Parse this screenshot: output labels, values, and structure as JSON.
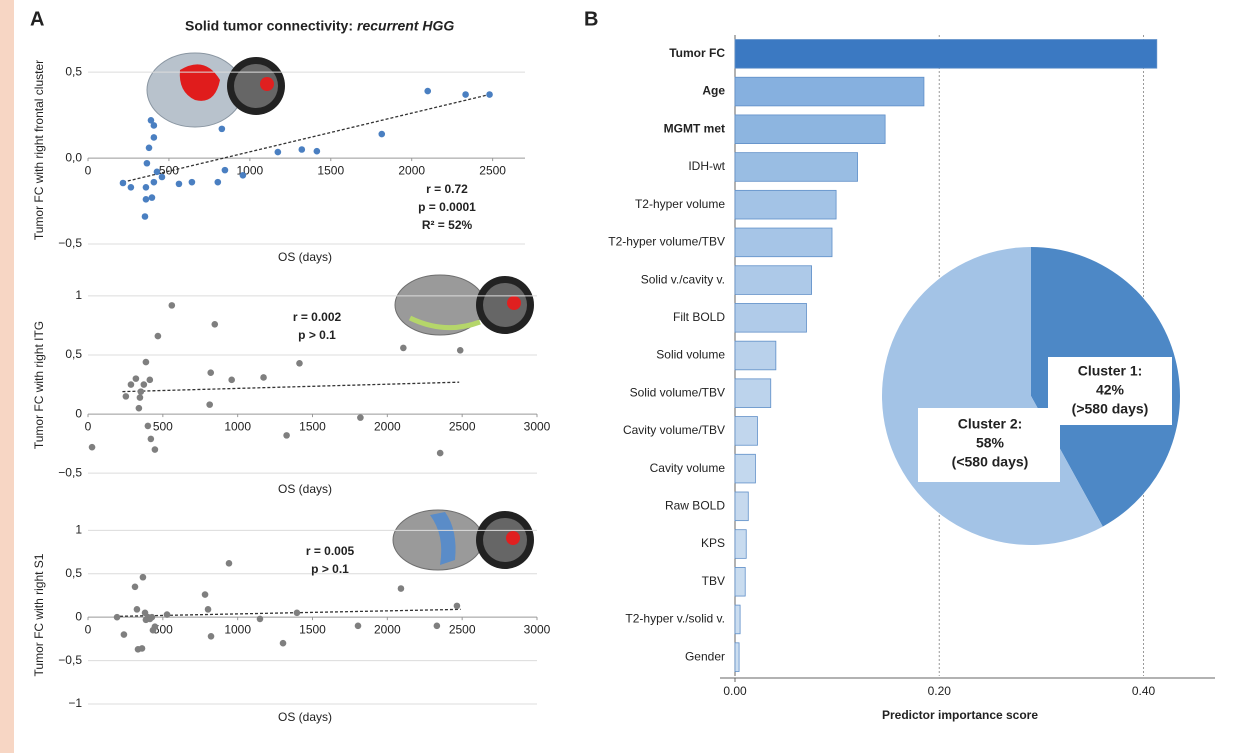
{
  "chart_data": [
    {
      "type": "scatter",
      "panel": "A",
      "title": "Solid tumor connectivity: ",
      "title_italic": "recurrent HGG",
      "ylabel": "Tumor FC with right frontal cluster",
      "xlabel": "OS (days)",
      "annotations": [
        "r = 0.72",
        "p = 0.0001",
        "R² = 52%"
      ],
      "xlim": [
        0,
        2700
      ],
      "ylim": [
        -0.5,
        0.6
      ],
      "xticks": [
        0,
        500,
        1000,
        1500,
        2000,
        2500
      ],
      "yticks": [
        {
          "value": -0.5,
          "label": "−0,5"
        },
        {
          "value": 0,
          "label": "0,0"
        },
        {
          "value": 0.5,
          "label": "0,5"
        }
      ],
      "grid": true,
      "color": "#4a7fc1",
      "x": [
        216,
        265,
        358,
        352,
        358,
        364,
        377,
        389,
        407,
        407,
        395,
        407,
        426,
        457,
        562,
        642,
        802,
        827,
        846,
        957,
        1173,
        1321,
        1414,
        1815,
        2099,
        2333,
        2481
      ],
      "values": [
        -0.145,
        -0.17,
        -0.24,
        -0.34,
        -0.17,
        -0.03,
        0.06,
        0.22,
        0.19,
        0.12,
        -0.23,
        -0.14,
        -0.08,
        -0.11,
        -0.15,
        -0.14,
        -0.14,
        0.17,
        -0.07,
        -0.1,
        0.035,
        0.05,
        0.04,
        0.14,
        0.39,
        0.37,
        0.37
      ],
      "trend": {
        "x": [
          216,
          2481
        ],
        "y": [
          -0.14,
          0.37
        ]
      }
    },
    {
      "type": "scatter",
      "ylabel": "Tumor FC with right ITG",
      "xlabel": "OS (days)",
      "annotations": [
        "r = 0.002",
        "p > 0.1"
      ],
      "xlim": [
        0,
        3000
      ],
      "ylim": [
        -0.6,
        1.05
      ],
      "xticks": [
        0,
        500,
        1000,
        1500,
        2000,
        2500,
        3000
      ],
      "yticks": [
        {
          "value": -0.5,
          "label": "−0,5"
        },
        0,
        {
          "value": 0.5,
          "label": "0,5"
        },
        1
      ],
      "grid": true,
      "color": "#7f7f7f",
      "x": [
        27,
        253,
        287,
        320,
        340,
        347,
        353,
        373,
        387,
        400,
        413,
        420,
        447,
        467,
        560,
        820,
        847,
        813,
        960,
        1173,
        1327,
        1413,
        1820,
        2107,
        2353,
        2487
      ],
      "values": [
        -0.28,
        0.15,
        0.25,
        0.3,
        0.05,
        0.14,
        0.19,
        0.25,
        0.44,
        -0.1,
        0.29,
        -0.21,
        -0.3,
        0.66,
        0.92,
        0.35,
        0.76,
        0.08,
        0.29,
        0.31,
        -0.18,
        0.43,
        -0.03,
        0.56,
        -0.33,
        0.54
      ],
      "trend": {
        "x": [
          230,
          2480
        ],
        "y": [
          0.19,
          0.27
        ]
      }
    },
    {
      "type": "scatter",
      "ylabel": "Tumor FC with right S1",
      "xlabel": "OS (days)",
      "annotations": [
        "r = 0.005",
        "p > 0.1"
      ],
      "xlim": [
        0,
        3000
      ],
      "ylim": [
        -1,
        1.05
      ],
      "xticks": [
        0,
        500,
        1000,
        1500,
        2000,
        2500,
        3000
      ],
      "yticks": [
        {
          "value": -1,
          "label": "−1"
        },
        {
          "value": -0.5,
          "label": "−0,5"
        },
        0,
        {
          "value": 0.5,
          "label": "0,5"
        },
        1
      ],
      "grid": true,
      "color": "#7f7f7f",
      "x": [
        194,
        240,
        314,
        327,
        334,
        361,
        367,
        381,
        387,
        401,
        414,
        427,
        447,
        434,
        528,
        782,
        802,
        822,
        942,
        1149,
        1303,
        1396,
        1804,
        2091,
        2331,
        2465
      ],
      "values": [
        0,
        -0.2,
        0.35,
        0.09,
        -0.37,
        -0.36,
        0.46,
        0.05,
        -0.03,
        0,
        -0.02,
        0,
        -0.11,
        -0.15,
        0.03,
        0.26,
        0.09,
        -0.22,
        0.62,
        -0.02,
        -0.3,
        0.05,
        -0.1,
        0.33,
        -0.1,
        0.13
      ],
      "trend": {
        "x": [
          214,
          2490
        ],
        "y": [
          0.01,
          0.09
        ]
      }
    },
    {
      "type": "hbar",
      "panel": "B",
      "xlabel": "Predictor importance score",
      "categories": [
        "Tumor FC",
        "Age",
        "MGMT met",
        "IDH-wt",
        "T2-hyper volume",
        "T2-hyper volume/TBV",
        "Solid v./cavity v.",
        "Filt BOLD",
        "Solid volume",
        "Solid volume/TBV",
        "Cavity volume/TBV",
        "Cavity volume",
        "Raw BOLD",
        "KPS",
        "TBV",
        "T2-hyper v./solid v.",
        "Gender"
      ],
      "values": [
        0.413,
        0.185,
        0.147,
        0.12,
        0.099,
        0.095,
        0.075,
        0.07,
        0.04,
        0.035,
        0.022,
        0.02,
        0.013,
        0.011,
        0.01,
        0.005,
        0.004
      ],
      "bold": [
        true,
        true,
        true,
        false,
        false,
        false,
        false,
        false,
        false,
        false,
        false,
        false,
        false,
        false,
        false,
        false,
        false
      ],
      "colors": [
        "#3b79c2",
        "#86b0df",
        "#8db5e0",
        "#99bde3",
        "#a3c3e6",
        "#a6c5e7",
        "#adc9e8",
        "#b0cbe9",
        "#b9d1eb",
        "#bcd3ec",
        "#c1d6ed",
        "#c3d8ee",
        "#c6d9ee",
        "#c8dbef",
        "#c9dcef",
        "#cbddf0",
        "#ccdef0"
      ],
      "xlim": [
        0,
        0.47
      ],
      "xticks": [
        {
          "value": 0,
          "label": "0.00"
        },
        {
          "value": 0.2,
          "label": "0.20"
        },
        {
          "value": 0.4,
          "label": "0.40"
        }
      ],
      "grid": true
    },
    {
      "type": "pie",
      "categories": [
        "Cluster 1:",
        "Cluster 2:"
      ],
      "values": [
        42,
        58
      ],
      "value_labels": [
        "42%",
        "58%"
      ],
      "sublabels": [
        "(>580 days)",
        "(<580 days)"
      ],
      "colors": [
        "#4d88c6",
        "#a3c3e6"
      ]
    }
  ]
}
